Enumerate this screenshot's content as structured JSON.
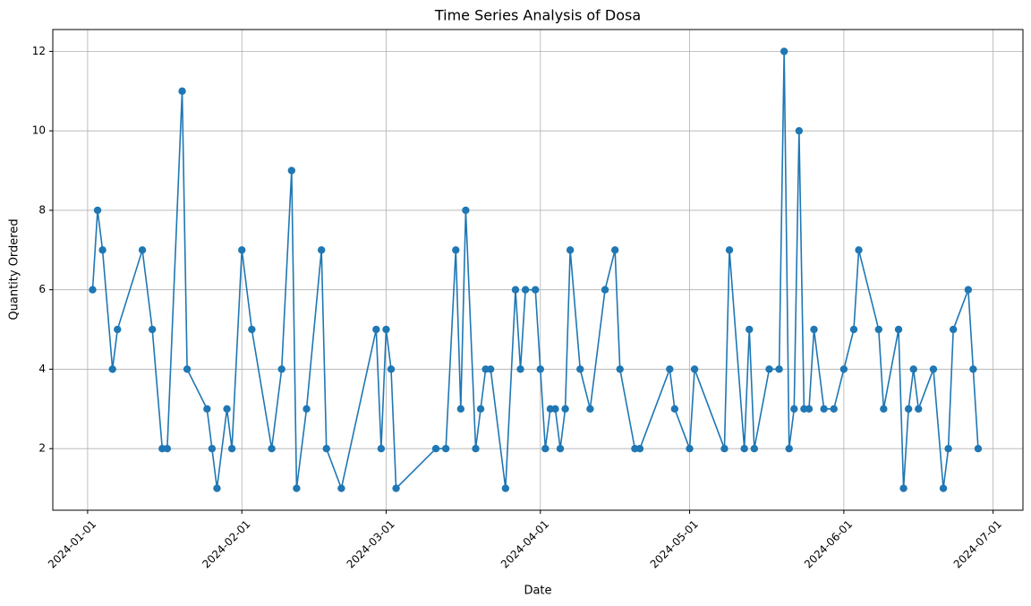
{
  "chart_data": {
    "type": "line",
    "title": "Time Series Analysis of Dosa",
    "x_label": "Date",
    "y_label": "Quantity Ordered",
    "x": [
      "2024-01-02",
      "2024-01-03",
      "2024-01-04",
      "2024-01-06",
      "2024-01-07",
      "2024-01-12",
      "2024-01-14",
      "2024-01-16",
      "2024-01-17",
      "2024-01-20",
      "2024-01-21",
      "2024-01-25",
      "2024-01-26",
      "2024-01-27",
      "2024-01-29",
      "2024-01-30",
      "2024-02-01",
      "2024-02-03",
      "2024-02-07",
      "2024-02-09",
      "2024-02-11",
      "2024-02-12",
      "2024-02-14",
      "2024-02-17",
      "2024-02-18",
      "2024-02-21",
      "2024-02-28",
      "2024-02-29",
      "2024-03-01",
      "2024-03-02",
      "2024-03-03",
      "2024-03-11",
      "2024-03-13",
      "2024-03-15",
      "2024-03-16",
      "2024-03-17",
      "2024-03-19",
      "2024-03-20",
      "2024-03-21",
      "2024-03-22",
      "2024-03-25",
      "2024-03-27",
      "2024-03-28",
      "2024-03-29",
      "2024-03-31",
      "2024-04-01",
      "2024-04-02",
      "2024-04-03",
      "2024-04-04",
      "2024-04-05",
      "2024-04-06",
      "2024-04-07",
      "2024-04-09",
      "2024-04-11",
      "2024-04-14",
      "2024-04-16",
      "2024-04-17",
      "2024-04-20",
      "2024-04-21",
      "2024-04-27",
      "2024-04-28",
      "2024-05-01",
      "2024-05-02",
      "2024-05-08",
      "2024-05-09",
      "2024-05-12",
      "2024-05-13",
      "2024-05-14",
      "2024-05-17",
      "2024-05-19",
      "2024-05-20",
      "2024-05-21",
      "2024-05-22",
      "2024-05-23",
      "2024-05-24",
      "2024-05-25",
      "2024-05-26",
      "2024-05-28",
      "2024-05-30",
      "2024-06-01",
      "2024-06-03",
      "2024-06-04",
      "2024-06-08",
      "2024-06-09",
      "2024-06-12",
      "2024-06-13",
      "2024-06-14",
      "2024-06-15",
      "2024-06-16",
      "2024-06-19",
      "2024-06-21",
      "2024-06-22",
      "2024-06-23",
      "2024-06-26",
      "2024-06-27",
      "2024-06-28"
    ],
    "series": [
      {
        "name": "Dosa",
        "color": "#1f77b4",
        "values": [
          6,
          8,
          7,
          4,
          5,
          7,
          5,
          2,
          2,
          11,
          4,
          3,
          2,
          1,
          3,
          2,
          7,
          5,
          2,
          4,
          9,
          1,
          3,
          7,
          2,
          1,
          5,
          2,
          5,
          4,
          1,
          2,
          2,
          7,
          3,
          8,
          2,
          3,
          4,
          4,
          1,
          6,
          4,
          6,
          6,
          4,
          2,
          3,
          3,
          2,
          3,
          7,
          4,
          3,
          6,
          7,
          4,
          2,
          2,
          4,
          3,
          2,
          4,
          2,
          7,
          2,
          5,
          2,
          4,
          4,
          12,
          2,
          3,
          10,
          3,
          3,
          5,
          3,
          3,
          4,
          5,
          7,
          5,
          3,
          5,
          1,
          3,
          4,
          3,
          4,
          1,
          2,
          5,
          6,
          4,
          2
        ]
      }
    ],
    "xlim": [
      "2023-12-25",
      "2024-07-07"
    ],
    "ylim": [
      0.45,
      12.55
    ],
    "xticks": [
      "2024-01-01",
      "2024-02-01",
      "2024-03-01",
      "2024-04-01",
      "2024-05-01",
      "2024-06-01",
      "2024-07-01"
    ],
    "yticks": [
      2,
      4,
      6,
      8,
      10,
      12
    ],
    "grid": true
  }
}
